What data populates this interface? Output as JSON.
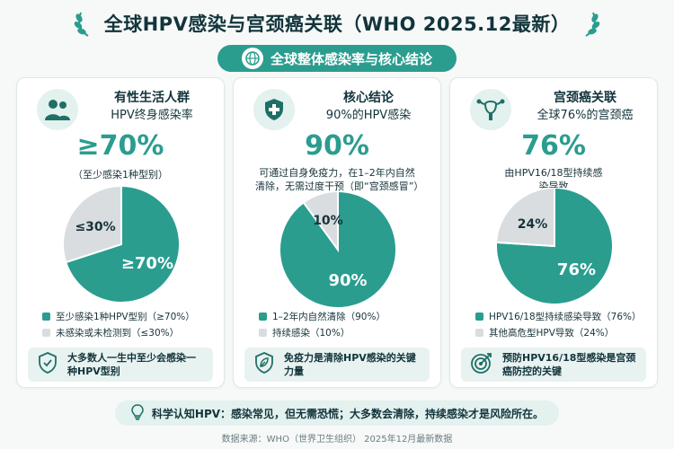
{
  "header": {
    "title": "全球HPV感染与宫颈癌关联（WHO 2025.12最新）",
    "subtitle": "全球整体感染率与核心结论"
  },
  "colors": {
    "teal": "#2a9d8f",
    "grey": "#d9dde0",
    "tip_bg": "#e8f3f1"
  },
  "cards": [
    {
      "icon": "people-icon",
      "heading": "有性生活人群",
      "subheading": "HPV终身感染率",
      "big": "≥70%",
      "note": "（至少感染1种型别）",
      "tip": "大多数人一生中至少会感染一种HPV型别",
      "tip_icon": "shield-check-icon"
    },
    {
      "icon": "shield-plus-icon",
      "heading": "核心结论",
      "subheading": "90%的HPV感染",
      "big": "90%",
      "note": "可通过自身免疫力，在1–2年内自然清除，无需过度干预（即“宫颈感冒”）",
      "tip": "免疫力是清除HPV感染的关键力量",
      "tip_icon": "leaf-shield-icon"
    },
    {
      "icon": "uterus-icon",
      "heading": "宫颈癌关联",
      "subheading": "全球76%的宫颈癌",
      "big": "76%",
      "note": "由HPV16/18型持续感染导致",
      "tip": "预防HPV16/18型感染是宫颈癌防控的关键",
      "tip_icon": "target-icon"
    }
  ],
  "chart_data": [
    {
      "type": "pie",
      "categories": [
        "至少感染1种HPV型别（≥70%）",
        "未感染或未检测到（≤30%）"
      ],
      "values": [
        70,
        30
      ],
      "slice_labels": [
        "≥70%",
        "≤30%"
      ],
      "colors": [
        "#2a9d8f",
        "#d9dde0"
      ]
    },
    {
      "type": "pie",
      "categories": [
        "1–2年内自然清除（90%）",
        "持续感染（10%）"
      ],
      "values": [
        90,
        10
      ],
      "slice_labels": [
        "90%",
        "10%"
      ],
      "colors": [
        "#2a9d8f",
        "#d9dde0"
      ]
    },
    {
      "type": "pie",
      "categories": [
        "HPV16/18型持续感染导致（76%）",
        "其他高危型HPV导致（24%）"
      ],
      "values": [
        76,
        24
      ],
      "slice_labels": [
        "76%",
        "24%"
      ],
      "colors": [
        "#2a9d8f",
        "#d9dde0"
      ]
    }
  ],
  "footer": {
    "banner": "科学认知HPV：感染常见，但无需恐慌；大多数会清除，持续感染才是风险所在。",
    "source": "数据来源：WHO（世界卫生组织） 2025年12月最新数据"
  }
}
